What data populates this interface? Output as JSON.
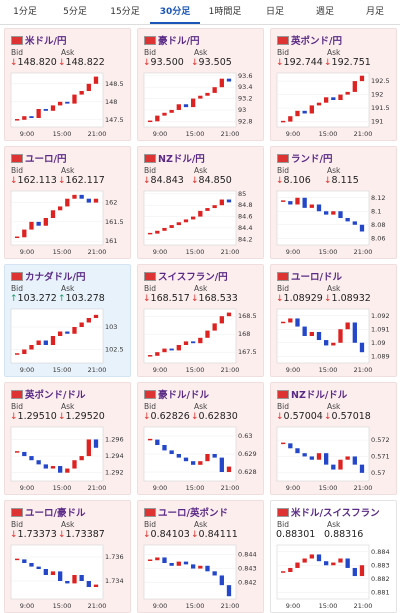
{
  "tabs": [
    "1分足",
    "5分足",
    "15分足",
    "30分足",
    "1時間足",
    "日足",
    "週足",
    "月足"
  ],
  "selected_tab": 3,
  "bid_label": "Bid",
  "ask_label": "Ask",
  "xlabels": [
    "9:00",
    "15:00",
    "21:00"
  ],
  "cards": [
    {
      "name": "米ドル/円",
      "arrow": "↓",
      "trend": "down",
      "bid": "148.820",
      "ask": "148.822",
      "ylim": [
        147.3,
        148.8
      ],
      "yticks": [
        148.5,
        148,
        147.5
      ],
      "closes": [
        147.5,
        147.6,
        147.55,
        147.8,
        147.75,
        147.9,
        148.0,
        147.95,
        148.2,
        148.3,
        148.5,
        148.7
      ]
    },
    {
      "name": "豪ドル/円",
      "arrow": "↓",
      "trend": "down",
      "bid": "93.500",
      "ask": "93.505",
      "ylim": [
        92.7,
        93.65
      ],
      "yticks": [
        93.6,
        93.4,
        93.2,
        93,
        92.8
      ],
      "closes": [
        92.8,
        92.9,
        92.95,
        93.0,
        93.1,
        93.05,
        93.2,
        93.25,
        93.3,
        93.4,
        93.55,
        93.5
      ]
    },
    {
      "name": "英ポンド/円",
      "arrow": "↓",
      "trend": "down",
      "bid": "192.744",
      "ask": "192.751",
      "ylim": [
        190.8,
        192.8
      ],
      "yticks": [
        192.5,
        192,
        191.5,
        191
      ],
      "closes": [
        191.0,
        191.2,
        191.4,
        191.3,
        191.6,
        191.7,
        191.9,
        191.8,
        192.0,
        192.1,
        192.5,
        192.7
      ]
    },
    {
      "name": "ユーロ/円",
      "arrow": "↓",
      "trend": "down",
      "bid": "162.113",
      "ask": "162.117",
      "ylim": [
        160.9,
        162.3
      ],
      "yticks": [
        162,
        161.5,
        161
      ],
      "closes": [
        161.1,
        161.3,
        161.5,
        161.4,
        161.6,
        161.8,
        161.9,
        162.1,
        162.2,
        162.1,
        162.0,
        162.1
      ]
    },
    {
      "name": "NZドル/円",
      "arrow": "↓",
      "trend": "down",
      "bid": "84.843",
      "ask": "84.850",
      "ylim": [
        84.1,
        85.05
      ],
      "yticks": [
        85,
        84.8,
        84.6,
        84.4,
        84.2
      ],
      "closes": [
        84.3,
        84.35,
        84.4,
        84.45,
        84.5,
        84.55,
        84.6,
        84.7,
        84.75,
        84.8,
        84.9,
        84.85
      ]
    },
    {
      "name": "ランド/円",
      "arrow": "↓",
      "trend": "down",
      "bid": "8.106",
      "ask": "8.115",
      "ylim": [
        8.05,
        8.13
      ],
      "yticks": [
        8.12,
        8.1,
        8.08,
        8.06
      ],
      "closes": [
        8.115,
        8.11,
        8.12,
        8.105,
        8.11,
        8.1,
        8.095,
        8.1,
        8.09,
        8.085,
        8.08,
        8.07
      ]
    },
    {
      "name": "カナダドル/円",
      "arrow": "↑",
      "trend": "up",
      "bid": "103.272",
      "ask": "103.278",
      "ylim": [
        102.2,
        103.4
      ],
      "yticks": [
        103,
        102.5
      ],
      "closes": [
        102.4,
        102.5,
        102.6,
        102.7,
        102.6,
        102.8,
        102.9,
        102.85,
        103.0,
        103.1,
        103.2,
        103.27
      ]
    },
    {
      "name": "スイスフラン/円",
      "arrow": "↓",
      "trend": "down",
      "bid": "168.517",
      "ask": "168.533",
      "ylim": [
        167.2,
        168.7
      ],
      "yticks": [
        168.5,
        168,
        167.5
      ],
      "closes": [
        167.4,
        167.5,
        167.6,
        167.55,
        167.7,
        167.8,
        167.75,
        167.9,
        168.1,
        168.3,
        168.5,
        168.6
      ]
    },
    {
      "name": "ユーロ/ドル",
      "arrow": "↓",
      "trend": "down",
      "bid": "1.08929",
      "ask": "1.08932",
      "ylim": [
        1.0885,
        1.0925
      ],
      "yticks": [
        1.092,
        1.091,
        1.09,
        1.089
      ],
      "closes": [
        1.0915,
        1.0918,
        1.0912,
        1.0905,
        1.0908,
        1.0902,
        1.0898,
        1.09,
        1.091,
        1.0915,
        1.09,
        1.0893
      ]
    },
    {
      "name": "英ポンド/ドル",
      "arrow": "↓",
      "trend": "down",
      "bid": "1.29510",
      "ask": "1.29520",
      "ylim": [
        1.291,
        1.2975
      ],
      "yticks": [
        1.296,
        1.294,
        1.292
      ],
      "closes": [
        1.2945,
        1.294,
        1.2935,
        1.293,
        1.2925,
        1.2928,
        1.292,
        1.2925,
        1.2935,
        1.294,
        1.296,
        1.295
      ]
    },
    {
      "name": "豪ドル/ドル",
      "arrow": "↓",
      "trend": "down",
      "bid": "0.62826",
      "ask": "0.62830",
      "ylim": [
        0.6275,
        0.6305
      ],
      "yticks": [
        0.63,
        0.629,
        0.628
      ],
      "closes": [
        0.6298,
        0.6295,
        0.6292,
        0.629,
        0.6288,
        0.6286,
        0.6284,
        0.6286,
        0.629,
        0.6288,
        0.628,
        0.6283
      ]
    },
    {
      "name": "NZドル/ドル",
      "arrow": "↓",
      "trend": "down",
      "bid": "0.57004",
      "ask": "0.57018",
      "ylim": [
        0.5695,
        0.5728
      ],
      "yticks": [
        0.572,
        0.571,
        0.57
      ],
      "closes": [
        0.5718,
        0.5715,
        0.5712,
        0.571,
        0.5708,
        0.5712,
        0.5705,
        0.5702,
        0.5708,
        0.571,
        0.5705,
        0.57
      ]
    },
    {
      "name": "ユーロ/豪ドル",
      "arrow": "↓",
      "trend": "down",
      "bid": "1.73373",
      "ask": "1.73387",
      "ylim": [
        1.7325,
        1.737
      ],
      "yticks": [
        1.736,
        1.734
      ],
      "closes": [
        1.7358,
        1.7355,
        1.7352,
        1.735,
        1.7345,
        1.7348,
        1.734,
        1.7338,
        1.7345,
        1.734,
        1.7335,
        1.7337
      ]
    },
    {
      "name": "ユーロ/英ポンド",
      "arrow": "↓",
      "trend": "down",
      "bid": "0.84103",
      "ask": "0.84111",
      "ylim": [
        0.8408,
        0.8447
      ],
      "yticks": [
        0.844,
        0.843,
        0.842
      ],
      "closes": [
        0.8436,
        0.8438,
        0.8434,
        0.8432,
        0.8435,
        0.8433,
        0.843,
        0.8432,
        0.8428,
        0.8425,
        0.8418,
        0.841
      ]
    },
    {
      "name": "米ドル/スイスフラン",
      "trend": "flat",
      "bid": "0.88301",
      "ask": "0.88316",
      "ylim": [
        0.8805,
        0.8845
      ],
      "yticks": [
        0.884,
        0.883,
        0.882,
        0.881
      ],
      "closes": [
        0.8825,
        0.8828,
        0.8832,
        0.8835,
        0.8838,
        0.8833,
        0.883,
        0.8832,
        0.8835,
        0.8828,
        0.8822,
        0.883
      ]
    }
  ]
}
